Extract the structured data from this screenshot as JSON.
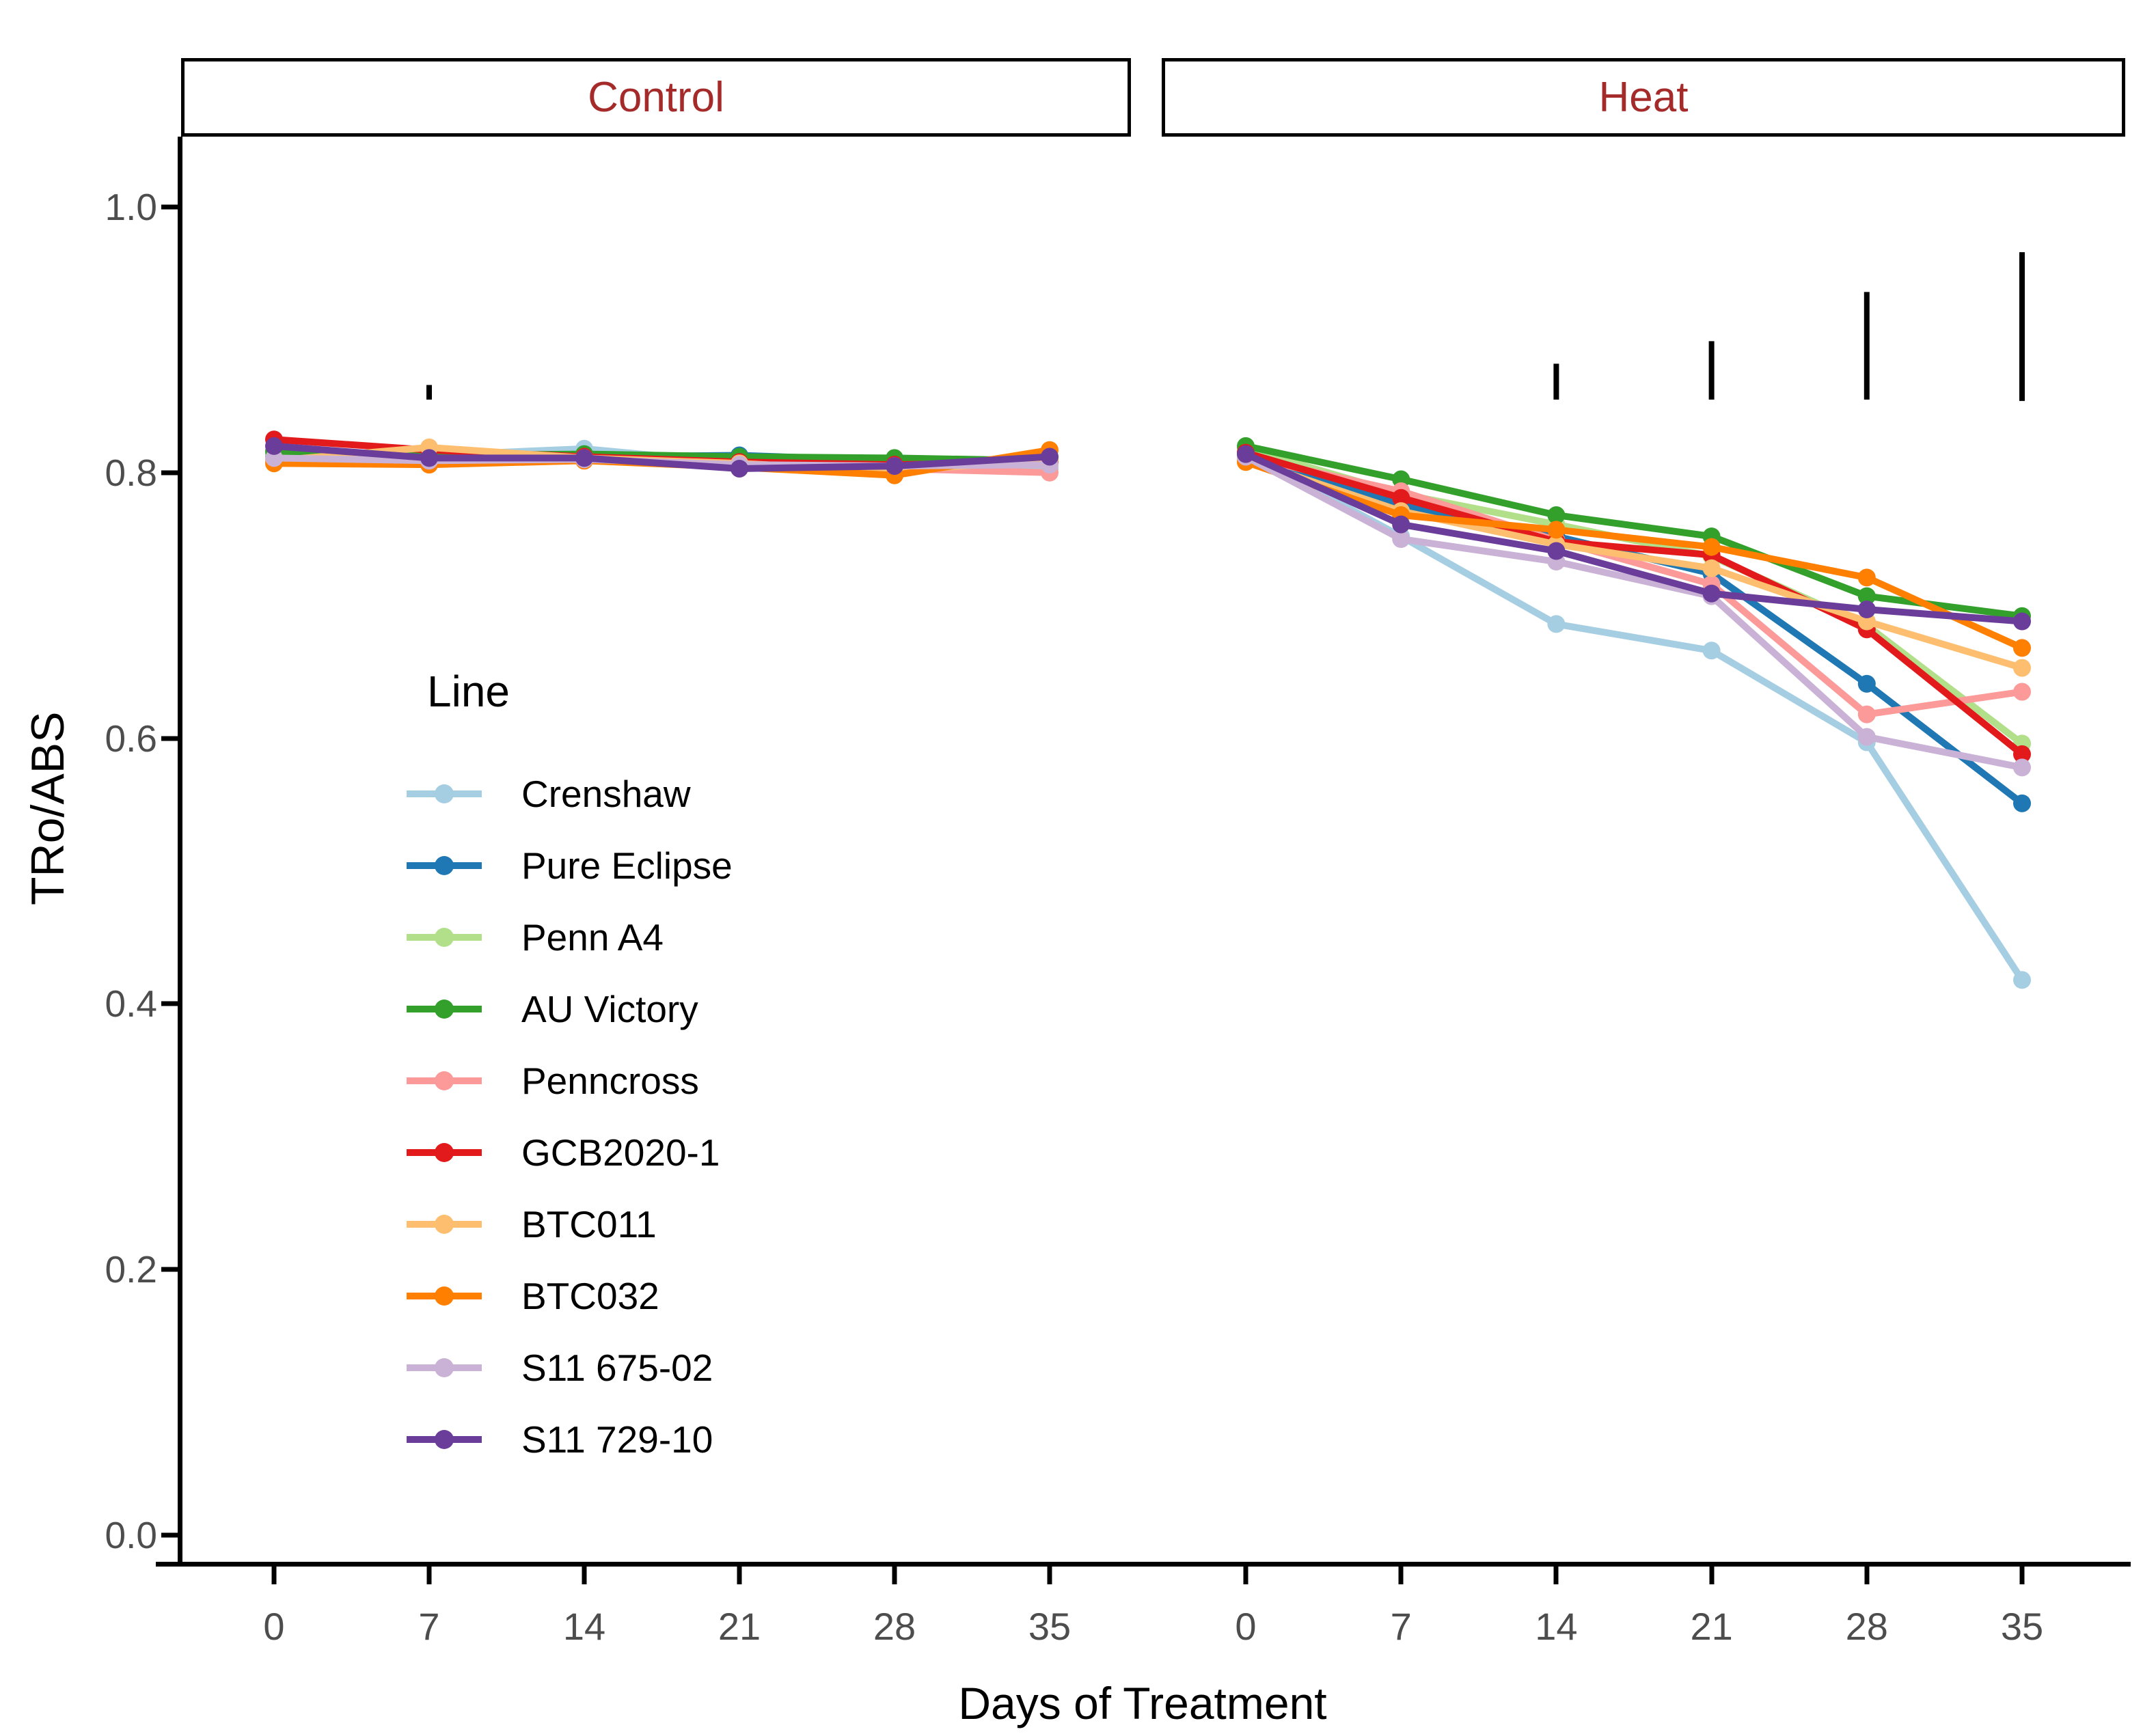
{
  "figure": {
    "ylabel": "TRo/ABS",
    "xlabel": "Days of Treatment",
    "ytick_labels": [
      "1.0",
      "0.8",
      "0.6",
      "0.4",
      "0.2",
      "0.0"
    ],
    "ytick_values": [
      1.0,
      0.8,
      0.6,
      0.4,
      0.2,
      0.0
    ],
    "xtick_labels": [
      "0",
      "7",
      "14",
      "21",
      "28",
      "35"
    ],
    "xtick_values": [
      0,
      7,
      14,
      21,
      28,
      35
    ],
    "strip_text_color": "#A52A2A",
    "tick_label_color": "#4d4d4d"
  },
  "legend": {
    "title": "Line",
    "entries": [
      {
        "label": "Crenshaw",
        "color": "#A6CEE3"
      },
      {
        "label": "Pure Eclipse",
        "color": "#1F78B4"
      },
      {
        "label": "Penn A4",
        "color": "#B2DF8A"
      },
      {
        "label": "AU Victory",
        "color": "#33A02C"
      },
      {
        "label": "Penncross",
        "color": "#FB9A99"
      },
      {
        "label": "GCB2020-1",
        "color": "#E31A1C"
      },
      {
        "label": "BTC011",
        "color": "#FDBF6F"
      },
      {
        "label": "BTC032",
        "color": "#FF7F00"
      },
      {
        "label": "S11 675-02",
        "color": "#CAB2D6"
      },
      {
        "label": "S11 729-10",
        "color": "#6A3D9A"
      }
    ]
  },
  "chart_data": {
    "type": "line",
    "title": "",
    "xlabel": "Days of Treatment",
    "ylabel": "TRo/ABS",
    "ylim": [
      0.0,
      1.0
    ],
    "x": [
      0,
      7,
      14,
      21,
      28,
      35
    ],
    "grid": false,
    "legend_position": "inside-left-panel",
    "facets": [
      {
        "label": "Control",
        "series": [
          {
            "name": "Crenshaw",
            "color": "#A6CEE3",
            "values": [
              0.812,
              0.813,
              0.818,
              0.807,
              0.806,
              0.803
            ]
          },
          {
            "name": "Pure Eclipse",
            "color": "#1F78B4",
            "values": [
              0.813,
              0.81,
              0.812,
              0.813,
              0.809,
              0.809
            ]
          },
          {
            "name": "Penn A4",
            "color": "#B2DF8A",
            "values": [
              0.814,
              0.812,
              0.812,
              0.811,
              0.809,
              0.807
            ]
          },
          {
            "name": "AU Victory",
            "color": "#33A02C",
            "values": [
              0.816,
              0.813,
              0.814,
              0.812,
              0.811,
              0.809
            ]
          },
          {
            "name": "Penncross",
            "color": "#FB9A99",
            "values": [
              0.81,
              0.809,
              0.81,
              0.806,
              0.803,
              0.8
            ]
          },
          {
            "name": "GCB2020-1",
            "color": "#E31A1C",
            "values": [
              0.825,
              0.817,
              0.812,
              0.808,
              0.806,
              0.808
            ]
          },
          {
            "name": "BTC011",
            "color": "#FDBF6F",
            "values": [
              0.809,
              0.819,
              0.811,
              0.807,
              0.801,
              0.81
            ]
          },
          {
            "name": "BTC032",
            "color": "#FF7F00",
            "values": [
              0.807,
              0.806,
              0.809,
              0.804,
              0.798,
              0.817
            ]
          },
          {
            "name": "S11 675-02",
            "color": "#CAB2D6",
            "values": [
              0.811,
              0.809,
              0.81,
              0.806,
              0.805,
              0.806
            ]
          },
          {
            "name": "S11 729-10",
            "color": "#6A3D9A",
            "values": [
              0.82,
              0.811,
              0.811,
              0.803,
              0.805,
              0.812
            ]
          }
        ],
        "error_bars": [
          {
            "day": 7,
            "low": 0.855,
            "high": 0.866
          }
        ]
      },
      {
        "label": "Heat",
        "series": [
          {
            "name": "Crenshaw",
            "color": "#A6CEE3",
            "values": [
              0.815,
              0.752,
              0.686,
              0.666,
              0.597,
              0.418
            ]
          },
          {
            "name": "Pure Eclipse",
            "color": "#1F78B4",
            "values": [
              0.815,
              0.776,
              0.752,
              0.724,
              0.641,
              0.551
            ]
          },
          {
            "name": "Penn A4",
            "color": "#B2DF8A",
            "values": [
              0.818,
              0.784,
              0.761,
              0.737,
              0.685,
              0.596
            ]
          },
          {
            "name": "AU Victory",
            "color": "#33A02C",
            "values": [
              0.82,
              0.795,
              0.768,
              0.752,
              0.707,
              0.692
            ]
          },
          {
            "name": "Penncross",
            "color": "#FB9A99",
            "values": [
              0.812,
              0.786,
              0.749,
              0.716,
              0.618,
              0.635
            ]
          },
          {
            "name": "GCB2020-1",
            "color": "#E31A1C",
            "values": [
              0.815,
              0.781,
              0.748,
              0.738,
              0.682,
              0.588
            ]
          },
          {
            "name": "BTC011",
            "color": "#FDBF6F",
            "values": [
              0.81,
              0.771,
              0.746,
              0.728,
              0.688,
              0.653
            ]
          },
          {
            "name": "BTC032",
            "color": "#FF7F00",
            "values": [
              0.808,
              0.768,
              0.757,
              0.744,
              0.721,
              0.668
            ]
          },
          {
            "name": "S11 675-02",
            "color": "#CAB2D6",
            "values": [
              0.812,
              0.75,
              0.733,
              0.707,
              0.601,
              0.578
            ]
          },
          {
            "name": "S11 729-10",
            "color": "#6A3D9A",
            "values": [
              0.814,
              0.761,
              0.741,
              0.709,
              0.697,
              0.688
            ]
          }
        ],
        "error_bars": [
          {
            "day": 14,
            "low": 0.855,
            "high": 0.882
          },
          {
            "day": 21,
            "low": 0.855,
            "high": 0.899
          },
          {
            "day": 28,
            "low": 0.855,
            "high": 0.936
          },
          {
            "day": 35,
            "low": 0.854,
            "high": 0.966
          }
        ]
      }
    ]
  }
}
